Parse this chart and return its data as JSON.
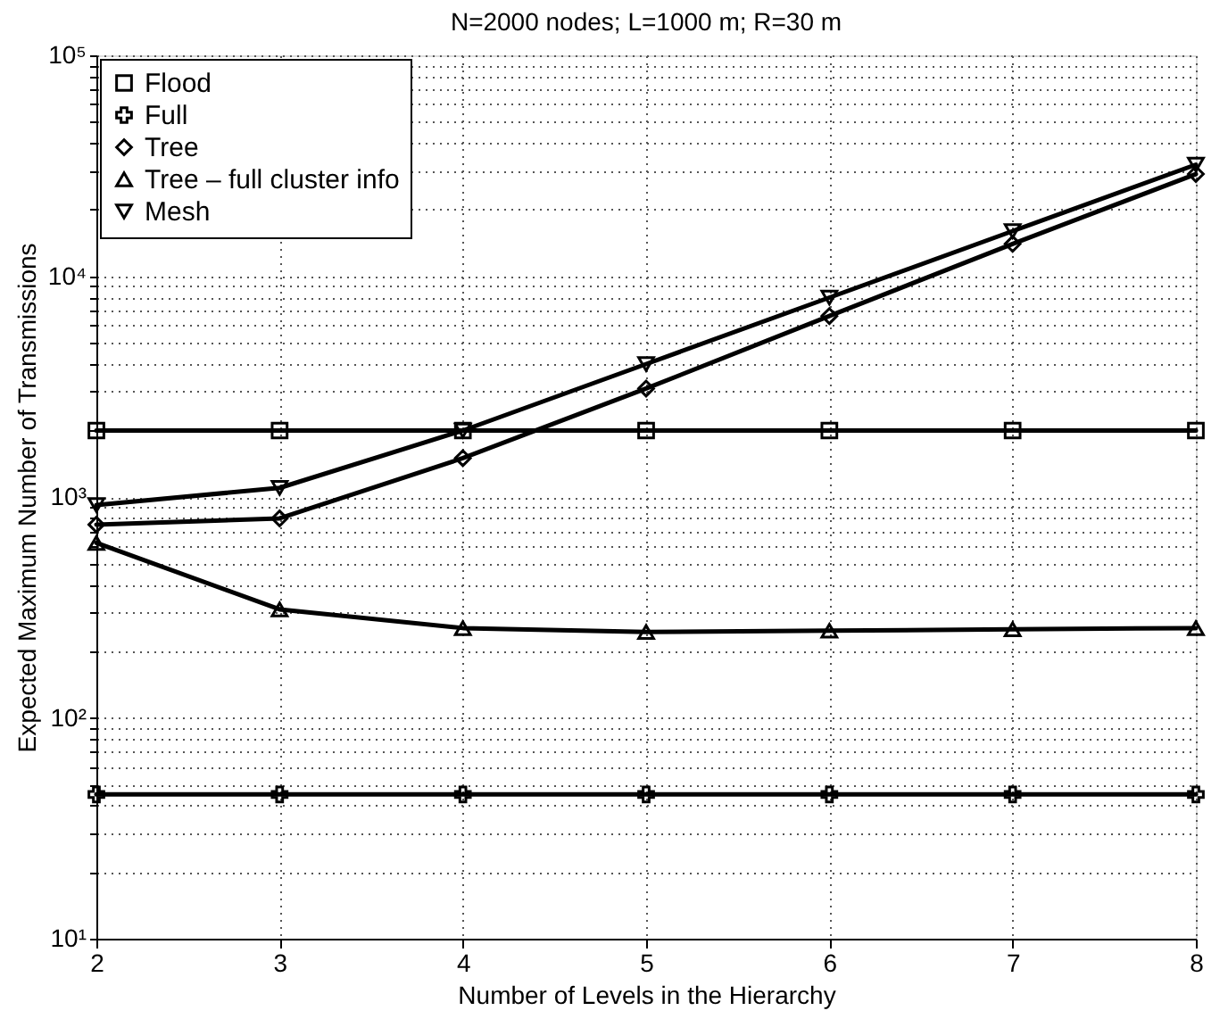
{
  "chart_data": {
    "type": "line",
    "title": "N=2000 nodes; L=1000 m; R=30 m",
    "xlabel": "Number of Levels in the Hierarchy",
    "ylabel": "Expected Maximum Number of Transmissions",
    "x": [
      2,
      3,
      4,
      5,
      6,
      7,
      8
    ],
    "series": [
      {
        "name": "Flood",
        "color": "#000000",
        "marker": "square",
        "values": [
          2000,
          2000,
          2000,
          2000,
          2000,
          2000,
          2000
        ]
      },
      {
        "name": "Full",
        "color": "#000000",
        "marker": "cross",
        "values": [
          45,
          45,
          45,
          45,
          45,
          45,
          45
        ]
      },
      {
        "name": "Tree",
        "color": "#000000",
        "marker": "diamond",
        "values": [
          750,
          800,
          1500,
          3100,
          6600,
          14000,
          29000
        ]
      },
      {
        "name": "Tree – full cluster info",
        "color": "#000000",
        "marker": "triangle",
        "values": [
          620,
          310,
          255,
          245,
          248,
          252,
          255
        ]
      },
      {
        "name": "Mesh",
        "color": "#000000",
        "marker": "triangle-down",
        "values": [
          920,
          1100,
          2000,
          4000,
          8000,
          16000,
          32000
        ]
      }
    ],
    "log": "y",
    "xlim": [
      2,
      8
    ],
    "xticks": [
      2,
      3,
      4,
      5,
      6,
      7,
      8
    ],
    "ylim": [
      10,
      100000
    ],
    "yticks": [
      {
        "value": 10,
        "label": "10¹"
      },
      {
        "value": 20,
        "label": null
      },
      {
        "value": 30,
        "label": null
      },
      {
        "value": 40,
        "label": null
      },
      {
        "value": 50,
        "label": null
      },
      {
        "value": 60,
        "label": null
      },
      {
        "value": 70,
        "label": null
      },
      {
        "value": 80,
        "label": null
      },
      {
        "value": 90,
        "label": null
      },
      {
        "value": 100,
        "label": "10²"
      },
      {
        "value": 200,
        "label": null
      },
      {
        "value": 300,
        "label": null
      },
      {
        "value": 400,
        "label": null
      },
      {
        "value": 500,
        "label": null
      },
      {
        "value": 600,
        "label": null
      },
      {
        "value": 700,
        "label": null
      },
      {
        "value": 800,
        "label": null
      },
      {
        "value": 900,
        "label": null
      },
      {
        "value": 1000,
        "label": "10³"
      },
      {
        "value": 2000,
        "label": null
      },
      {
        "value": 3000,
        "label": null
      },
      {
        "value": 4000,
        "label": null
      },
      {
        "value": 5000,
        "label": null
      },
      {
        "value": 6000,
        "label": null
      },
      {
        "value": 7000,
        "label": null
      },
      {
        "value": 8000,
        "label": null
      },
      {
        "value": 9000,
        "label": null
      },
      {
        "value": 10000,
        "label": "10⁴"
      },
      {
        "value": 20000,
        "label": null
      },
      {
        "value": 30000,
        "label": null
      },
      {
        "value": 40000,
        "label": null
      },
      {
        "value": 50000,
        "label": null
      },
      {
        "value": 60000,
        "label": null
      },
      {
        "value": 70000,
        "label": null
      },
      {
        "value": 80000,
        "label": null
      },
      {
        "value": 90000,
        "label": null
      },
      {
        "value": 100000,
        "label": "10⁵"
      }
    ],
    "grid": true,
    "legend": "top left",
    "line_style": "solid"
  }
}
